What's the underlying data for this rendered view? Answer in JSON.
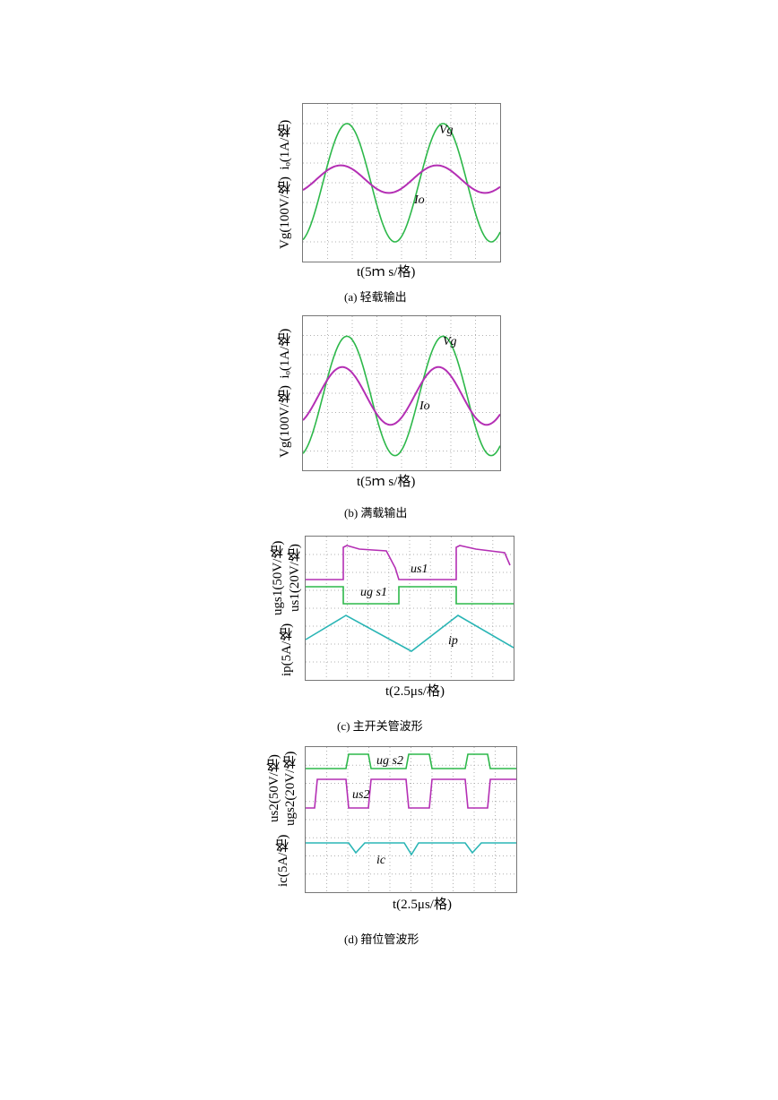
{
  "panels": [
    {
      "id": "a",
      "caption": "(a) 轻载输出",
      "ylabel_top": "iₒ(1A/格)",
      "ylabel_bottom": "Vg(100V/格)",
      "xlabel": "t(5ｍ s/格)",
      "curve_labels": [
        "Vg",
        "Io"
      ]
    },
    {
      "id": "b",
      "caption": "(b) 满载输出",
      "ylabel_top": "iₒ(1A/格)",
      "ylabel_bottom": "Vg(100V/格)",
      "xlabel": "t(5ｍ s/格)",
      "curve_labels": [
        "Vg",
        "Io"
      ]
    },
    {
      "id": "c",
      "caption": "(c) 主开关管波形",
      "ylabel_top": "us1(20V/格)",
      "ylabel_mid": "ugs1(50V/格)",
      "ylabel_bottom": "ip(5A/格)",
      "xlabel": "t(2.5μs/格)",
      "curve_labels": [
        "us1",
        "ug s1",
        "ip"
      ]
    },
    {
      "id": "d",
      "caption": "(d) 箝位管波形",
      "ylabel_top": "ugs2(20V/格)",
      "ylabel_mid": "us2(50V/格)",
      "ylabel_bottom": "ic(5A/格)",
      "xlabel": "t(2.5μs/格)",
      "curve_labels": [
        "ug s2",
        "us2",
        "ic"
      ]
    }
  ],
  "colors": {
    "green": "#2db84a",
    "magenta": "#b42fb4",
    "cyan": "#2ab5b5",
    "grid": "#b0b0b0"
  },
  "chart_data": [
    {
      "type": "line",
      "series": [
        {
          "name": "Vg",
          "shape": "sine",
          "amplitude_div": 3.0,
          "offset_div": 0.5,
          "periods": 2.0
        },
        {
          "name": "Io",
          "shape": "sine",
          "amplitude_div": 0.7,
          "offset_div": 0.5,
          "periods": 2.0
        }
      ],
      "xlabel": "t(5ｍ s/格)"
    },
    {
      "type": "line",
      "series": [
        {
          "name": "Vg",
          "shape": "sine",
          "amplitude_div": 3.0,
          "offset_div": 0.0,
          "periods": 2.0
        },
        {
          "name": "Io",
          "shape": "sine",
          "amplitude_div": 1.5,
          "offset_div": 0.0,
          "periods": 2.0
        }
      ],
      "xlabel": "t(5ｍ s/格)"
    },
    {
      "type": "line",
      "series": [
        {
          "name": "us1",
          "shape": "square"
        },
        {
          "name": "ug s1",
          "shape": "square"
        },
        {
          "name": "ip",
          "shape": "triangle"
        }
      ],
      "xlabel": "t(2.5μs/格)"
    },
    {
      "type": "line",
      "series": [
        {
          "name": "ug s2",
          "shape": "square"
        },
        {
          "name": "us2",
          "shape": "square"
        },
        {
          "name": "ic",
          "shape": "dips"
        }
      ],
      "xlabel": "t(2.5μs/格)"
    }
  ]
}
